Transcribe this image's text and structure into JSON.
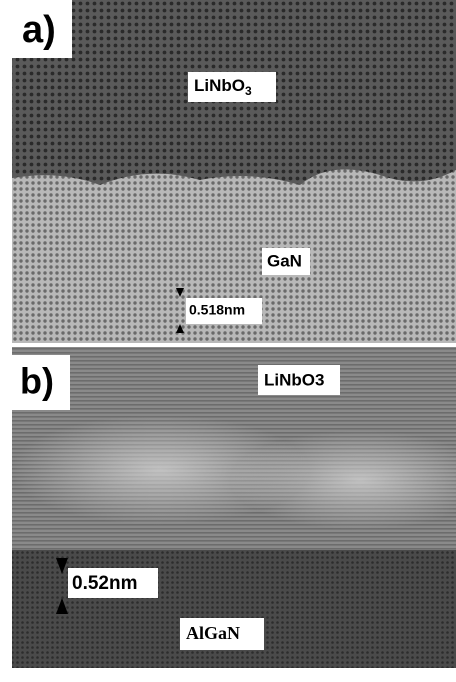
{
  "panel_a": {
    "label": "a)",
    "top_layer": {
      "text": "LiNbO",
      "subscript": "3"
    },
    "bottom_layer": "GaN",
    "spacing": "0.518nm"
  },
  "panel_b": {
    "label": "b)",
    "top_layer": "LiNbO3",
    "bottom_layer": "AlGaN",
    "spacing": "0.52nm"
  }
}
